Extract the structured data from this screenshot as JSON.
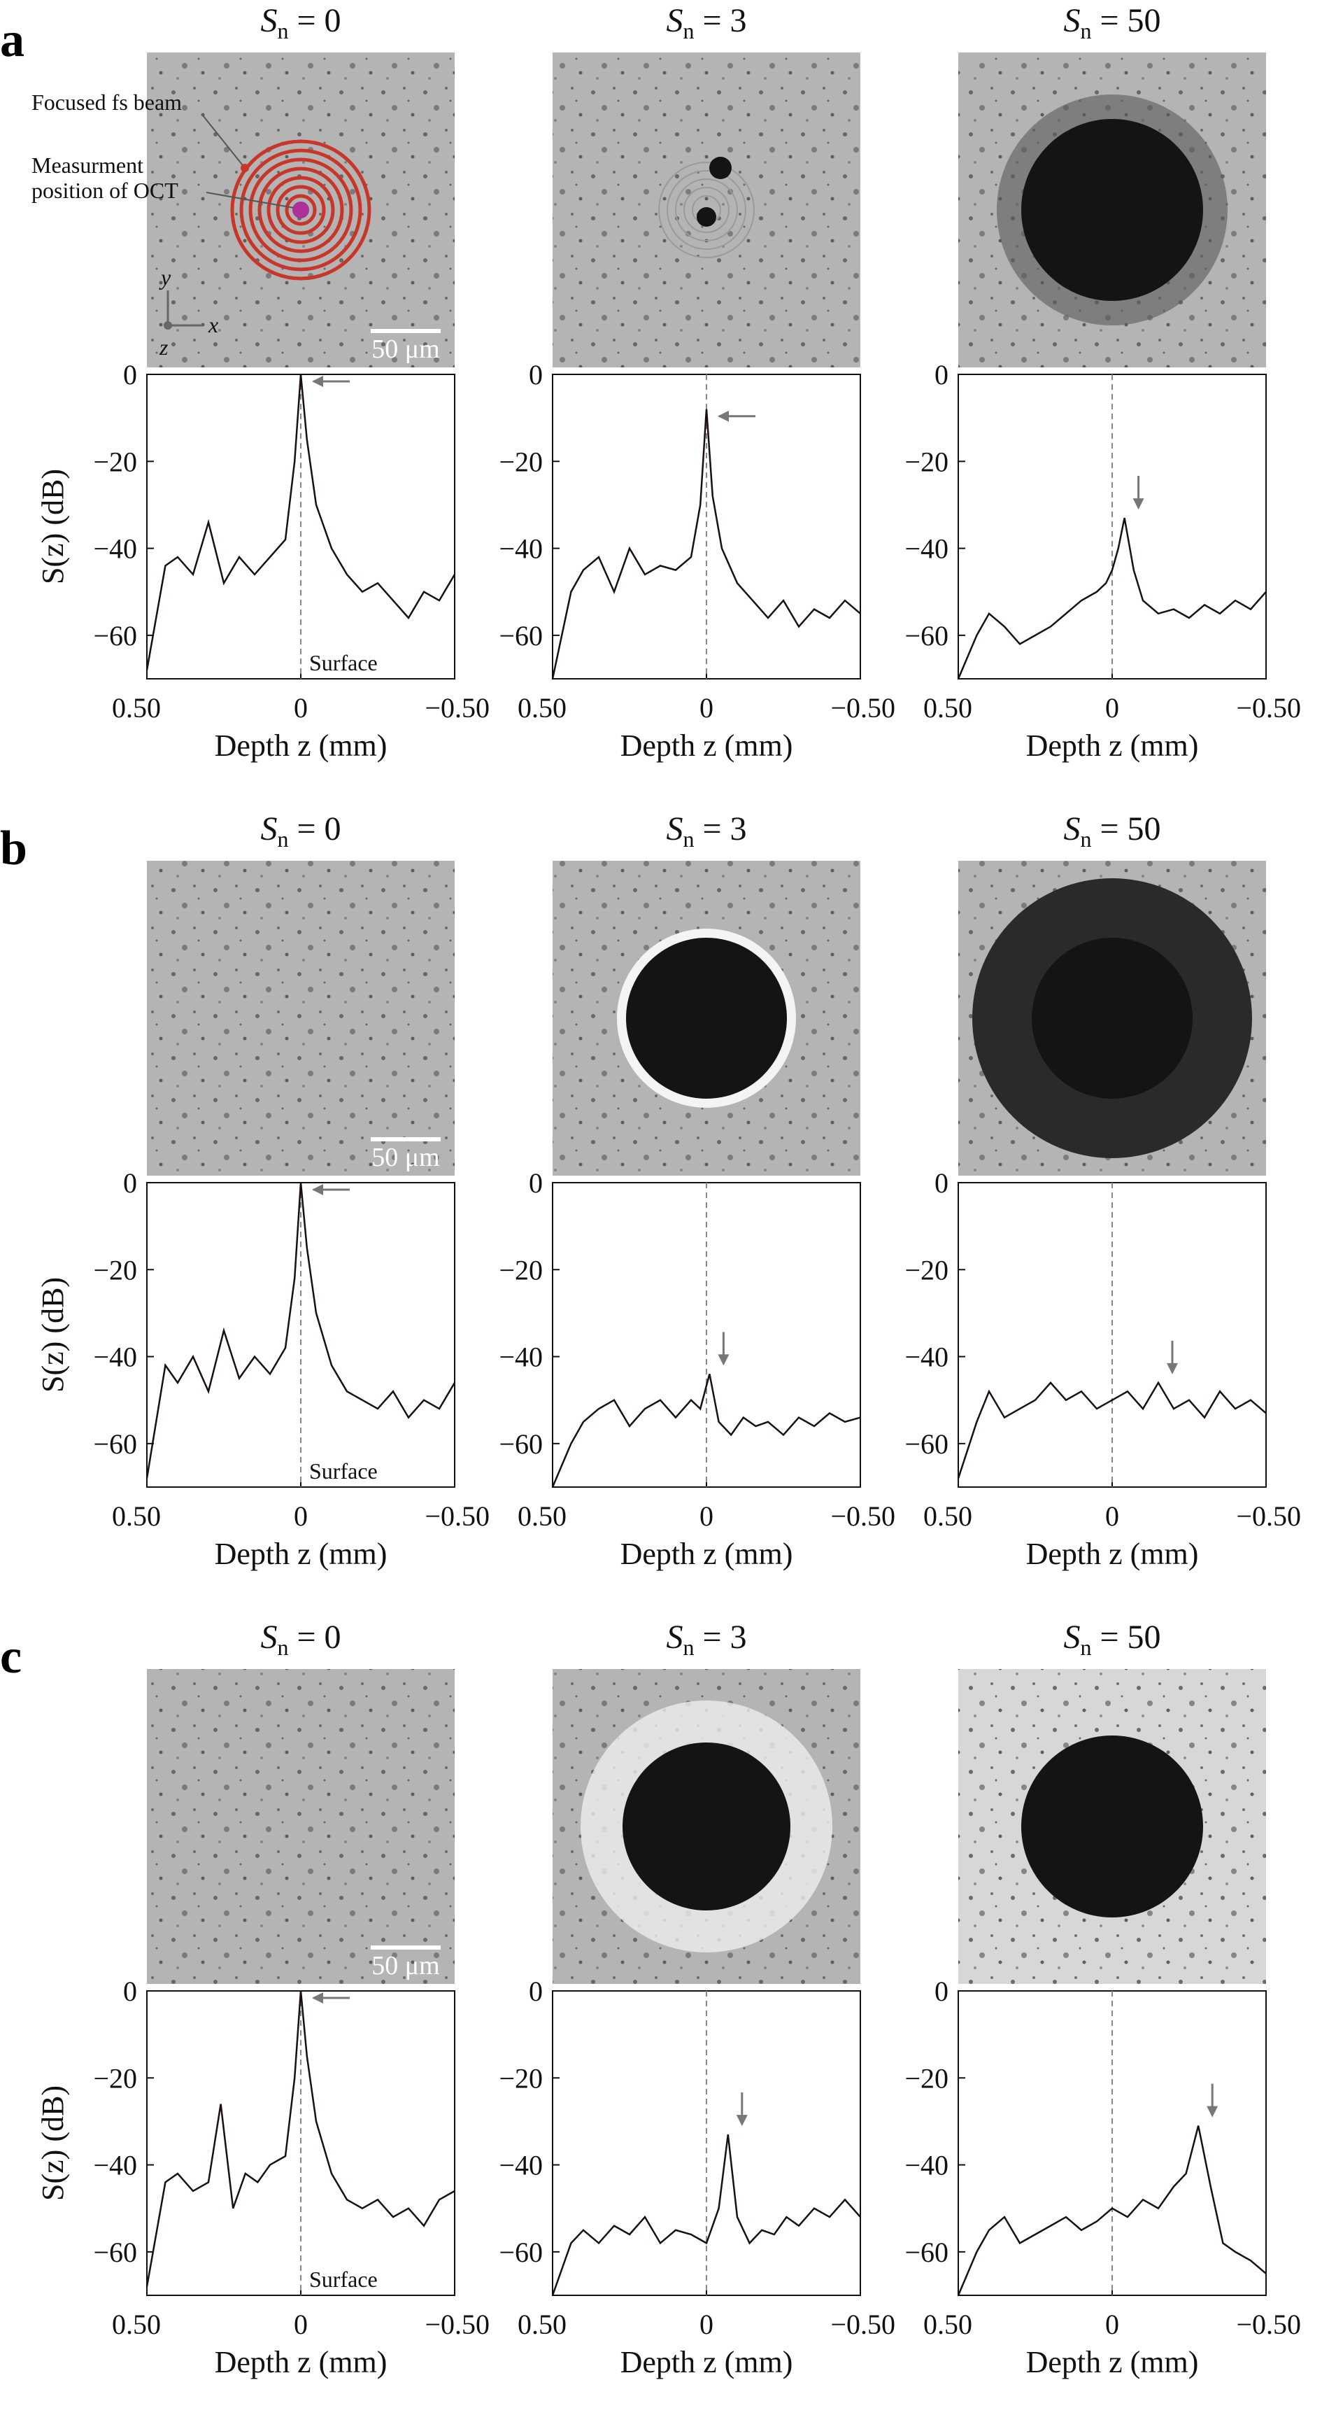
{
  "figure": {
    "panel_labels": [
      "a",
      "b",
      "c"
    ],
    "column_titles": [
      {
        "pre": "S",
        "sub": "n",
        "post": " = 0"
      },
      {
        "pre": "S",
        "sub": "n",
        "post": " = 3"
      },
      {
        "pre": "S",
        "sub": "n",
        "post": " = 50"
      }
    ],
    "scale_bar_label": "50 μm",
    "annotations": {
      "focused_beam": "Focused fs beam",
      "measurement_line1": "Measurment",
      "measurement_line2": "position of OCT",
      "axis_x": "x",
      "axis_y": "y",
      "axis_z": "z",
      "surface": "Surface"
    },
    "micrograph_colors": {
      "background": "#b4b4b4",
      "crater": "#141414",
      "beam_spiral": "#c8362a",
      "measurement_dot": "#b0309a"
    }
  },
  "chart_data": [
    {
      "type": "line",
      "row": "a",
      "col": 0,
      "xlabel": "Depth z (mm)",
      "ylabel": "S(z) (dB)",
      "xlim": [
        0.5,
        -0.5
      ],
      "ylim": [
        -70,
        0
      ],
      "xticks": [
        "0.50",
        "0",
        "−0.50"
      ],
      "yticks": [
        "0",
        "−20",
        "−40",
        "−60"
      ],
      "peak_z": 0.0,
      "peak_db": 0,
      "arrow": "left",
      "surface_label": true,
      "x": [
        0.5,
        0.44,
        0.4,
        0.35,
        0.3,
        0.25,
        0.2,
        0.15,
        0.1,
        0.05,
        0.02,
        0.0,
        -0.02,
        -0.05,
        -0.1,
        -0.15,
        -0.2,
        -0.25,
        -0.3,
        -0.35,
        -0.4,
        -0.45,
        -0.5
      ],
      "y": [
        -68,
        -44,
        -42,
        -46,
        -34,
        -48,
        -42,
        -46,
        -42,
        -38,
        -20,
        0,
        -15,
        -30,
        -40,
        -46,
        -50,
        -48,
        -52,
        -56,
        -50,
        -52,
        -46
      ]
    },
    {
      "type": "line",
      "row": "a",
      "col": 1,
      "xlabel": "Depth z (mm)",
      "ylabel": "",
      "xlim": [
        0.5,
        -0.5
      ],
      "ylim": [
        -70,
        0
      ],
      "xticks": [
        "0.50",
        "0",
        "−0.50"
      ],
      "yticks": [
        "0",
        "−20",
        "−40",
        "−60"
      ],
      "peak_z": 0.0,
      "peak_db": -8,
      "arrow": "left",
      "surface_label": false,
      "x": [
        0.5,
        0.44,
        0.4,
        0.35,
        0.3,
        0.25,
        0.2,
        0.15,
        0.1,
        0.05,
        0.02,
        0.0,
        -0.02,
        -0.05,
        -0.1,
        -0.15,
        -0.2,
        -0.25,
        -0.3,
        -0.35,
        -0.4,
        -0.45,
        -0.5
      ],
      "y": [
        -70,
        -50,
        -45,
        -42,
        -50,
        -40,
        -46,
        -44,
        -45,
        -42,
        -30,
        -8,
        -28,
        -40,
        -48,
        -52,
        -56,
        -52,
        -58,
        -54,
        -56,
        -52,
        -55
      ]
    },
    {
      "type": "line",
      "row": "a",
      "col": 2,
      "xlabel": "Depth z (mm)",
      "ylabel": "",
      "xlim": [
        0.5,
        -0.5
      ],
      "ylim": [
        -70,
        0
      ],
      "xticks": [
        "0.50",
        "0",
        "−0.50"
      ],
      "yticks": [
        "0",
        "−20",
        "−40",
        "−60"
      ],
      "peak_z": -0.04,
      "peak_db": -33,
      "arrow": "down",
      "surface_label": false,
      "x": [
        0.5,
        0.44,
        0.4,
        0.35,
        0.3,
        0.25,
        0.2,
        0.15,
        0.1,
        0.05,
        0.02,
        0.0,
        -0.02,
        -0.04,
        -0.07,
        -0.1,
        -0.15,
        -0.2,
        -0.25,
        -0.3,
        -0.35,
        -0.4,
        -0.45,
        -0.5
      ],
      "y": [
        -70,
        -60,
        -55,
        -58,
        -62,
        -60,
        -58,
        -55,
        -52,
        -50,
        -48,
        -45,
        -40,
        -33,
        -45,
        -52,
        -55,
        -54,
        -56,
        -53,
        -55,
        -52,
        -54,
        -50
      ]
    },
    {
      "type": "line",
      "row": "b",
      "col": 0,
      "xlabel": "Depth z (mm)",
      "ylabel": "S(z) (dB)",
      "xlim": [
        0.5,
        -0.5
      ],
      "ylim": [
        -70,
        0
      ],
      "xticks": [
        "0.50",
        "0",
        "−0.50"
      ],
      "yticks": [
        "0",
        "−20",
        "−40",
        "−60"
      ],
      "peak_z": 0.0,
      "peak_db": 0,
      "arrow": "left",
      "surface_label": true,
      "x": [
        0.5,
        0.44,
        0.4,
        0.35,
        0.3,
        0.25,
        0.2,
        0.15,
        0.1,
        0.05,
        0.02,
        0.0,
        -0.02,
        -0.05,
        -0.1,
        -0.15,
        -0.2,
        -0.25,
        -0.3,
        -0.35,
        -0.4,
        -0.45,
        -0.5
      ],
      "y": [
        -68,
        -42,
        -46,
        -40,
        -48,
        -34,
        -45,
        -40,
        -44,
        -38,
        -22,
        0,
        -15,
        -30,
        -42,
        -48,
        -50,
        -52,
        -48,
        -54,
        -50,
        -52,
        -46
      ]
    },
    {
      "type": "line",
      "row": "b",
      "col": 1,
      "xlabel": "Depth z (mm)",
      "ylabel": "",
      "xlim": [
        0.5,
        -0.5
      ],
      "ylim": [
        -70,
        0
      ],
      "xticks": [
        "0.50",
        "0",
        "−0.50"
      ],
      "yticks": [
        "0",
        "−20",
        "−40",
        "−60"
      ],
      "peak_z": -0.01,
      "peak_db": -44,
      "arrow": "down",
      "surface_label": false,
      "x": [
        0.5,
        0.44,
        0.4,
        0.35,
        0.3,
        0.25,
        0.2,
        0.15,
        0.1,
        0.05,
        0.02,
        -0.01,
        -0.04,
        -0.08,
        -0.12,
        -0.16,
        -0.2,
        -0.25,
        -0.3,
        -0.35,
        -0.4,
        -0.45,
        -0.5
      ],
      "y": [
        -70,
        -60,
        -55,
        -52,
        -50,
        -56,
        -52,
        -50,
        -54,
        -50,
        -52,
        -44,
        -55,
        -58,
        -54,
        -56,
        -55,
        -58,
        -54,
        -56,
        -53,
        -55,
        -54
      ]
    },
    {
      "type": "line",
      "row": "b",
      "col": 2,
      "xlabel": "Depth z (mm)",
      "ylabel": "",
      "xlim": [
        0.5,
        -0.5
      ],
      "ylim": [
        -70,
        0
      ],
      "xticks": [
        "0.50",
        "0",
        "−0.50"
      ],
      "yticks": [
        "0",
        "−20",
        "−40",
        "−60"
      ],
      "peak_z": -0.15,
      "peak_db": -46,
      "arrow": "down",
      "surface_label": false,
      "x": [
        0.5,
        0.44,
        0.4,
        0.35,
        0.3,
        0.25,
        0.2,
        0.15,
        0.1,
        0.05,
        0.0,
        -0.05,
        -0.1,
        -0.15,
        -0.2,
        -0.25,
        -0.3,
        -0.35,
        -0.4,
        -0.45,
        -0.5
      ],
      "y": [
        -68,
        -55,
        -48,
        -54,
        -52,
        -50,
        -46,
        -50,
        -48,
        -52,
        -50,
        -48,
        -52,
        -46,
        -52,
        -50,
        -54,
        -48,
        -52,
        -50,
        -53
      ]
    },
    {
      "type": "line",
      "row": "c",
      "col": 0,
      "xlabel": "Depth z (mm)",
      "ylabel": "S(z) (dB)",
      "xlim": [
        0.5,
        -0.5
      ],
      "ylim": [
        -70,
        0
      ],
      "xticks": [
        "0.50",
        "0",
        "−0.50"
      ],
      "yticks": [
        "0",
        "−20",
        "−40",
        "−60"
      ],
      "peak_z": 0.0,
      "peak_db": 0,
      "arrow": "left",
      "surface_label": true,
      "x": [
        0.5,
        0.44,
        0.4,
        0.35,
        0.3,
        0.26,
        0.22,
        0.18,
        0.14,
        0.1,
        0.05,
        0.02,
        0.0,
        -0.02,
        -0.05,
        -0.1,
        -0.15,
        -0.2,
        -0.25,
        -0.3,
        -0.35,
        -0.4,
        -0.45,
        -0.5
      ],
      "y": [
        -68,
        -44,
        -42,
        -46,
        -44,
        -26,
        -50,
        -42,
        -44,
        -40,
        -38,
        -20,
        0,
        -15,
        -30,
        -42,
        -48,
        -50,
        -48,
        -52,
        -50,
        -54,
        -48,
        -46
      ]
    },
    {
      "type": "line",
      "row": "c",
      "col": 1,
      "xlabel": "Depth z (mm)",
      "ylabel": "",
      "xlim": [
        0.5,
        -0.5
      ],
      "ylim": [
        -70,
        0
      ],
      "xticks": [
        "0.50",
        "0",
        "−0.50"
      ],
      "yticks": [
        "0",
        "−20",
        "−40",
        "−60"
      ],
      "peak_z": -0.07,
      "peak_db": -33,
      "arrow": "down",
      "surface_label": false,
      "x": [
        0.5,
        0.44,
        0.4,
        0.35,
        0.3,
        0.25,
        0.2,
        0.15,
        0.1,
        0.05,
        0.0,
        -0.04,
        -0.07,
        -0.1,
        -0.14,
        -0.18,
        -0.22,
        -0.26,
        -0.3,
        -0.35,
        -0.4,
        -0.45,
        -0.5
      ],
      "y": [
        -70,
        -58,
        -55,
        -58,
        -54,
        -56,
        -52,
        -58,
        -55,
        -56,
        -58,
        -50,
        -33,
        -52,
        -58,
        -55,
        -56,
        -52,
        -54,
        -50,
        -52,
        -48,
        -52
      ]
    },
    {
      "type": "line",
      "row": "c",
      "col": 2,
      "xlabel": "Depth z (mm)",
      "ylabel": "",
      "xlim": [
        0.5,
        -0.5
      ],
      "ylim": [
        -70,
        0
      ],
      "xticks": [
        "0.50",
        "0",
        "−0.50"
      ],
      "yticks": [
        "0",
        "−20",
        "−40",
        "−60"
      ],
      "peak_z": -0.28,
      "peak_db": -31,
      "arrow": "down",
      "surface_label": false,
      "x": [
        0.5,
        0.44,
        0.4,
        0.35,
        0.3,
        0.25,
        0.2,
        0.15,
        0.1,
        0.05,
        0.0,
        -0.05,
        -0.1,
        -0.15,
        -0.2,
        -0.24,
        -0.28,
        -0.32,
        -0.36,
        -0.4,
        -0.45,
        -0.5
      ],
      "y": [
        -70,
        -60,
        -55,
        -52,
        -58,
        -56,
        -54,
        -52,
        -55,
        -53,
        -50,
        -52,
        -48,
        -50,
        -45,
        -42,
        -31,
        -45,
        -58,
        -60,
        -62,
        -65
      ]
    }
  ]
}
